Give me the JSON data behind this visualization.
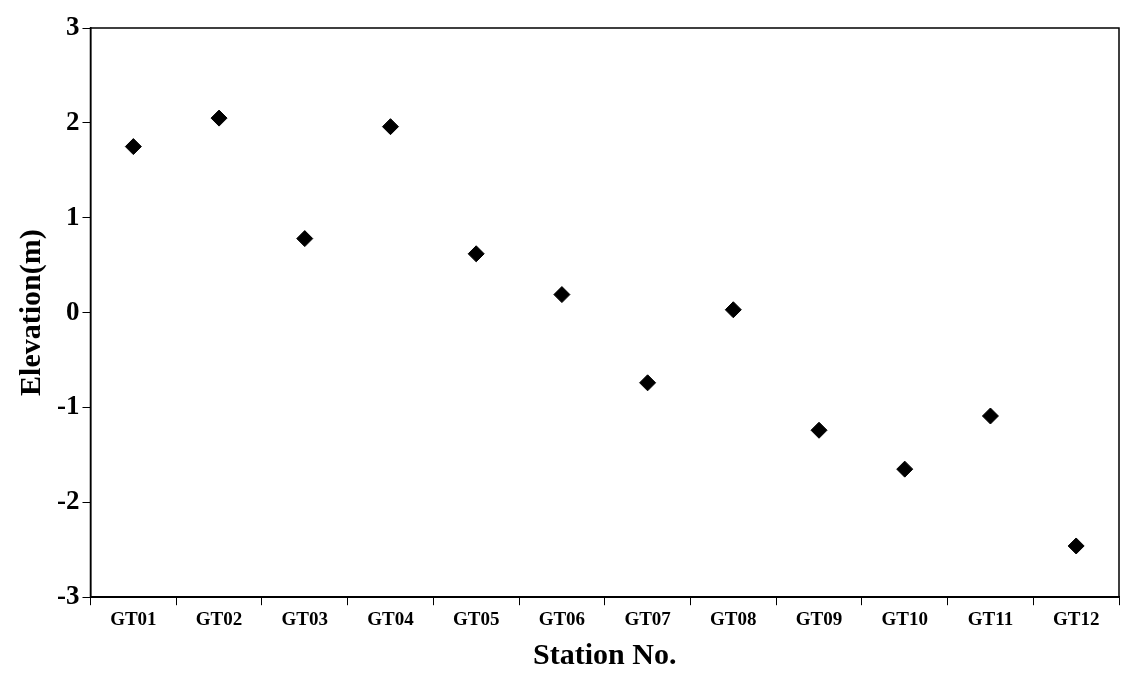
{
  "chart_data": {
    "type": "scatter",
    "xlabel": "Station No.",
    "ylabel": "Elevation(m)",
    "categories": [
      "GT01",
      "GT02",
      "GT03",
      "GT04",
      "GT05",
      "GT06",
      "GT07",
      "GT08",
      "GT09",
      "GT10",
      "GT11",
      "GT12"
    ],
    "values": [
      1.75,
      2.05,
      0.78,
      1.96,
      0.62,
      0.19,
      -0.74,
      0.03,
      -1.24,
      -1.65,
      -1.09,
      -2.46
    ],
    "color": "#000000",
    "marker": "diamond",
    "ylim": [
      -3,
      3
    ],
    "yticks": [
      -3,
      -2,
      -1,
      0,
      1,
      2,
      3
    ],
    "grid": false,
    "legend": false
  }
}
